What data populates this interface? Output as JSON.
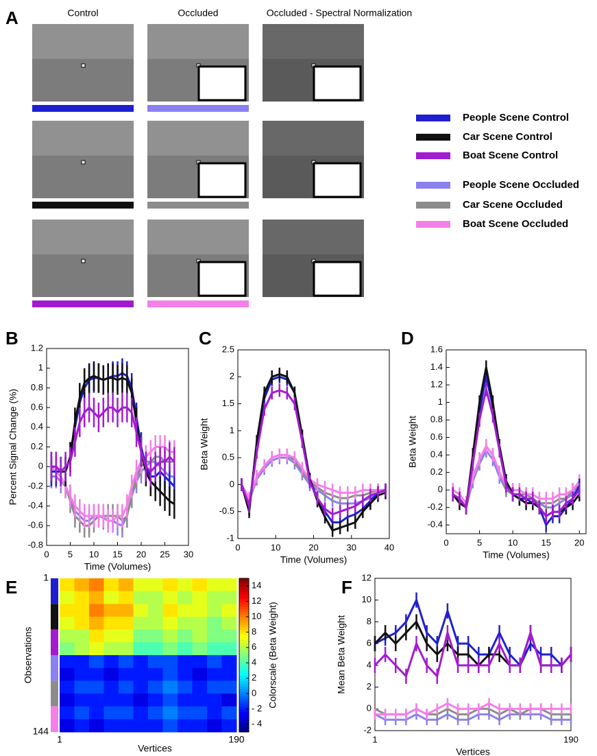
{
  "panel_a": {
    "panel": "A",
    "column_titles": [
      "Control",
      "Occluded",
      "Occluded - Spectral Normalization"
    ],
    "legend": [
      {
        "name": "People Scene Control",
        "color": "#1f1fd0"
      },
      {
        "name": "Car Scene Control",
        "color": "#111111"
      },
      {
        "name": "Boat Scene Control",
        "color": "#a21ccf"
      },
      {
        "name": "People Scene Occluded",
        "color": "#8a80f0"
      },
      {
        "name": "Car Scene Occluded",
        "color": "#8c8c8c"
      },
      {
        "name": "Boat Scene Occluded",
        "color": "#f47fe8"
      }
    ]
  },
  "chart_data": [
    {
      "type": "line",
      "panel": "B",
      "xlabel": "Time (Volumes)",
      "ylabel": "Percent Signal Change (%)",
      "x": [
        1,
        2,
        3,
        4,
        5,
        6,
        7,
        8,
        9,
        10,
        11,
        12,
        13,
        14,
        15,
        16,
        17,
        18,
        19,
        20,
        21,
        22,
        23,
        24,
        25,
        26,
        27
      ],
      "xlim": [
        0,
        30
      ],
      "xticks": [
        0,
        5,
        10,
        15,
        20,
        25,
        30
      ],
      "ylim": [
        -0.8,
        1.2
      ],
      "yticks": [
        -0.8,
        -0.6,
        -0.4,
        -0.2,
        0,
        0.2,
        0.4,
        0.6,
        0.8,
        1,
        1.2
      ],
      "series": [
        {
          "color": "#8a80f0",
          "error": 0.12,
          "values": [
            -0.1,
            -0.1,
            -0.15,
            -0.2,
            -0.3,
            -0.45,
            -0.5,
            -0.55,
            -0.55,
            -0.5,
            -0.5,
            -0.52,
            -0.55,
            -0.55,
            -0.58,
            -0.6,
            -0.5,
            -0.3,
            -0.15,
            -0.05,
            0,
            0.05,
            0.05,
            0,
            -0.05,
            -0.1,
            -0.1
          ]
        },
        {
          "color": "#8c8c8c",
          "error": 0.12,
          "values": [
            -0.05,
            -0.05,
            -0.1,
            -0.2,
            -0.35,
            -0.5,
            -0.55,
            -0.6,
            -0.6,
            -0.55,
            -0.5,
            -0.5,
            -0.5,
            -0.5,
            -0.5,
            -0.55,
            -0.5,
            -0.3,
            -0.1,
            0,
            0.05,
            0.05,
            0.1,
            0.1,
            0.05,
            0.05,
            0.05
          ]
        },
        {
          "color": "#f47fe8",
          "error": 0.12,
          "values": [
            0,
            -0.05,
            -0.1,
            -0.2,
            -0.3,
            -0.4,
            -0.45,
            -0.5,
            -0.5,
            -0.5,
            -0.5,
            -0.5,
            -0.55,
            -0.55,
            -0.5,
            -0.5,
            -0.4,
            -0.2,
            -0.05,
            0.05,
            0.1,
            0.15,
            0.2,
            0.2,
            0.2,
            0.15,
            0.15
          ]
        },
        {
          "color": "#1f1fd0",
          "error": 0.15,
          "values": [
            -0.05,
            -0.05,
            -0.05,
            -0.05,
            0.1,
            0.4,
            0.65,
            0.8,
            0.88,
            0.9,
            0.9,
            0.88,
            0.9,
            0.92,
            0.92,
            0.95,
            0.92,
            0.8,
            0.5,
            0.2,
            0,
            -0.1,
            -0.1,
            -0.05,
            -0.1,
            -0.15,
            -0.2
          ]
        },
        {
          "color": "#111111",
          "error": 0.15,
          "values": [
            0,
            0,
            -0.05,
            -0.05,
            0.1,
            0.45,
            0.7,
            0.85,
            0.9,
            0.92,
            0.9,
            0.88,
            0.9,
            0.9,
            0.88,
            0.9,
            0.88,
            0.75,
            0.45,
            0.15,
            -0.05,
            -0.15,
            -0.2,
            -0.25,
            -0.3,
            -0.35,
            -0.38
          ]
        },
        {
          "color": "#a21ccf",
          "error": 0.15,
          "values": [
            0,
            0,
            -0.05,
            0,
            0.05,
            0.25,
            0.45,
            0.55,
            0.6,
            0.55,
            0.5,
            0.55,
            0.6,
            0.6,
            0.55,
            0.6,
            0.6,
            0.55,
            0.35,
            0.15,
            0,
            -0.05,
            0,
            0.05,
            0.05,
            0.1,
            0.05
          ]
        }
      ]
    },
    {
      "type": "line",
      "panel": "C",
      "xlabel": "Time (Volumes)",
      "ylabel": "Beta Weight",
      "x": [
        1,
        3,
        5,
        7,
        9,
        11,
        13,
        15,
        17,
        19,
        21,
        23,
        25,
        27,
        29,
        31,
        33,
        35,
        37,
        39
      ],
      "xlim": [
        0,
        40
      ],
      "xticks": [
        0,
        10,
        20,
        30,
        40
      ],
      "ylim": [
        -1,
        2.5
      ],
      "yticks": [
        -1,
        -0.5,
        0,
        0.5,
        1,
        1.5,
        2,
        2.5
      ],
      "series": [
        {
          "color": "#8a80f0",
          "error": 0.12,
          "values": [
            0,
            -0.3,
            0.1,
            0.3,
            0.45,
            0.5,
            0.5,
            0.4,
            0.2,
            0,
            -0.1,
            -0.2,
            -0.3,
            -0.35,
            -0.35,
            -0.35,
            -0.3,
            -0.25,
            -0.15,
            -0.1
          ]
        },
        {
          "color": "#8c8c8c",
          "error": 0.12,
          "values": [
            0,
            -0.3,
            0.15,
            0.35,
            0.5,
            0.55,
            0.55,
            0.45,
            0.25,
            0.05,
            -0.05,
            -0.15,
            -0.2,
            -0.25,
            -0.25,
            -0.2,
            -0.2,
            -0.15,
            -0.1,
            -0.1
          ]
        },
        {
          "color": "#f47fe8",
          "error": 0.12,
          "values": [
            0,
            -0.25,
            0.15,
            0.35,
            0.5,
            0.55,
            0.55,
            0.5,
            0.3,
            0.1,
            0,
            -0.05,
            -0.1,
            -0.15,
            -0.15,
            -0.15,
            -0.1,
            -0.1,
            -0.1,
            -0.1
          ]
        },
        {
          "color": "#1f1fd0",
          "error": 0.12,
          "values": [
            0,
            -0.45,
            0.75,
            1.6,
            1.95,
            2,
            1.95,
            1.7,
            0.9,
            0.1,
            -0.25,
            -0.5,
            -0.7,
            -0.7,
            -0.6,
            -0.55,
            -0.45,
            -0.3,
            -0.15,
            -0.1
          ]
        },
        {
          "color": "#111111",
          "error": 0.12,
          "values": [
            0,
            -0.5,
            0.8,
            1.7,
            2,
            2.05,
            2,
            1.7,
            0.9,
            0.1,
            -0.3,
            -0.6,
            -0.85,
            -0.8,
            -0.75,
            -0.7,
            -0.5,
            -0.35,
            -0.2,
            -0.15
          ]
        },
        {
          "color": "#a21ccf",
          "error": 0.12,
          "values": [
            0,
            -0.4,
            0.6,
            1.4,
            1.7,
            1.75,
            1.7,
            1.5,
            0.8,
            0.05,
            -0.25,
            -0.45,
            -0.55,
            -0.5,
            -0.45,
            -0.4,
            -0.3,
            -0.2,
            -0.15,
            -0.1
          ]
        }
      ]
    },
    {
      "type": "line",
      "panel": "D",
      "xlabel": "Time (Volumes)",
      "ylabel": "Beta Weight",
      "x": [
        1,
        2,
        3,
        4,
        5,
        6,
        7,
        8,
        9,
        10,
        11,
        12,
        13,
        14,
        15,
        16,
        17,
        18,
        19,
        20
      ],
      "xlim": [
        0,
        21
      ],
      "xticks": [
        0,
        5,
        10,
        15,
        20
      ],
      "ylim": [
        -0.5,
        1.6
      ],
      "yticks": [
        -0.4,
        -0.2,
        0,
        0.2,
        0.4,
        0.6,
        0.8,
        1,
        1.2,
        1.4,
        1.6
      ],
      "series": [
        {
          "color": "#8a80f0",
          "error": 0.08,
          "values": [
            -0.05,
            -0.1,
            -0.2,
            0.1,
            0.3,
            0.45,
            0.35,
            0.15,
            0,
            -0.05,
            -0.05,
            -0.1,
            -0.1,
            -0.15,
            -0.2,
            -0.2,
            -0.15,
            -0.1,
            -0.05,
            0.05
          ]
        },
        {
          "color": "#8c8c8c",
          "error": 0.08,
          "values": [
            -0.05,
            -0.1,
            -0.2,
            0.15,
            0.35,
            0.5,
            0.4,
            0.2,
            0,
            -0.05,
            -0.05,
            -0.05,
            -0.1,
            -0.15,
            -0.15,
            -0.15,
            -0.1,
            -0.1,
            0,
            0.05
          ]
        },
        {
          "color": "#f47fe8",
          "error": 0.08,
          "values": [
            0,
            -0.05,
            -0.15,
            0.15,
            0.35,
            0.5,
            0.4,
            0.2,
            0.05,
            0,
            0,
            -0.05,
            -0.05,
            -0.1,
            -0.1,
            -0.1,
            -0.05,
            -0.05,
            0,
            0.1
          ]
        },
        {
          "color": "#1f1fd0",
          "error": 0.08,
          "values": [
            -0.05,
            -0.1,
            -0.2,
            0.35,
            0.9,
            1.3,
            0.95,
            0.5,
            0.1,
            -0.05,
            -0.1,
            -0.1,
            -0.15,
            -0.2,
            -0.4,
            -0.3,
            -0.3,
            -0.2,
            -0.1,
            0.05
          ]
        },
        {
          "color": "#111111",
          "error": 0.08,
          "values": [
            -0.05,
            -0.15,
            -0.2,
            0.4,
            1,
            1.4,
            1,
            0.5,
            0.1,
            -0.05,
            -0.1,
            -0.15,
            -0.15,
            -0.2,
            -0.3,
            -0.25,
            -0.25,
            -0.2,
            -0.15,
            -0.05
          ]
        },
        {
          "color": "#a21ccf",
          "error": 0.08,
          "values": [
            -0.05,
            -0.1,
            -0.2,
            0.3,
            0.8,
            1.15,
            0.85,
            0.45,
            0.05,
            -0.05,
            -0.05,
            -0.1,
            -0.1,
            -0.2,
            -0.3,
            -0.25,
            -0.25,
            -0.15,
            -0.1,
            0
          ]
        }
      ]
    },
    {
      "type": "heatmap",
      "panel": "E",
      "xlabel": "Vertices",
      "ylabel": "Observations",
      "colorbar_label": "Colorscale (Beta Weight)",
      "xlim": [
        1,
        190
      ],
      "xticks": [
        1,
        190
      ],
      "ylim": [
        1,
        144
      ],
      "yticks": [
        1,
        144
      ],
      "clim": [
        -5,
        15
      ],
      "cticks": [
        {
          "value": -4,
          "label": "- 4"
        },
        {
          "value": -2,
          "label": "- 2"
        },
        0,
        2,
        4,
        6,
        8,
        10,
        12,
        14
      ],
      "row_colors": [
        "#1f1fd0",
        "#111111",
        "#a21ccf",
        "#8a80f0",
        "#8c8c8c",
        "#f47fe8"
      ],
      "values": [
        [
          8,
          9,
          10,
          8,
          9,
          7,
          7,
          8,
          7,
          8,
          7,
          7
        ],
        [
          7,
          8,
          9,
          7,
          8,
          6,
          6,
          7,
          6,
          7,
          6,
          6
        ],
        [
          8,
          8,
          10,
          9,
          9,
          7,
          6,
          8,
          7,
          7,
          6,
          7
        ],
        [
          7,
          8,
          9,
          8,
          8,
          6,
          6,
          7,
          6,
          6,
          5,
          6
        ],
        [
          6,
          6,
          8,
          7,
          7,
          5,
          5,
          6,
          5,
          6,
          5,
          5
        ],
        [
          5,
          6,
          7,
          6,
          6,
          4,
          4,
          5,
          4,
          5,
          4,
          4
        ],
        [
          -2,
          -2,
          -1,
          -2,
          -1,
          -2,
          -1,
          -1,
          -2,
          -2,
          -1,
          -2
        ],
        [
          -3,
          -2,
          -2,
          -3,
          -2,
          -2,
          -2,
          -1,
          -2,
          -3,
          -2,
          -2
        ],
        [
          -2,
          -1,
          -1,
          -2,
          -1,
          -2,
          -1,
          0,
          -1,
          -2,
          -1,
          -1
        ],
        [
          -3,
          -2,
          -2,
          -2,
          -2,
          -3,
          -2,
          -1,
          -2,
          -2,
          -2,
          -3
        ],
        [
          -2,
          -1,
          -2,
          -1,
          -1,
          -2,
          -1,
          0,
          -1,
          -1,
          -2,
          -1
        ],
        [
          -3,
          -2,
          -3,
          -2,
          -2,
          -2,
          -2,
          -1,
          -2,
          -2,
          -3,
          -2
        ]
      ]
    },
    {
      "type": "line",
      "panel": "F",
      "xlabel": "Vertices",
      "ylabel": "Mean Beta Weight",
      "x": [
        1,
        11,
        21,
        31,
        41,
        51,
        61,
        71,
        81,
        91,
        101,
        111,
        121,
        131,
        141,
        151,
        161,
        171,
        181,
        190
      ],
      "xlim": [
        1,
        190
      ],
      "xticks": [
        1,
        190
      ],
      "ylim": [
        -2,
        12
      ],
      "yticks": [
        -2,
        0,
        2,
        4,
        6,
        8,
        10,
        12
      ],
      "series": [
        {
          "color": "#8a80f0",
          "error": 0.5,
          "values": [
            -0.5,
            -1,
            -1,
            -1,
            -0.5,
            -1,
            -1,
            -0.5,
            -1,
            -1,
            -0.5,
            -0.5,
            -1,
            -0.5,
            -0.5,
            -0.5,
            -0.5,
            -1,
            -1,
            -1
          ]
        },
        {
          "color": "#8c8c8c",
          "error": 0.5,
          "values": [
            0,
            -0.5,
            -0.5,
            -0.5,
            0,
            -0.5,
            -0.5,
            0,
            -0.5,
            -0.5,
            0,
            0,
            -0.5,
            0,
            -0.5,
            0,
            0,
            -0.5,
            -0.5,
            -0.5
          ]
        },
        {
          "color": "#f47fe8",
          "error": 0.5,
          "values": [
            -0.5,
            -0.5,
            -0.5,
            -0.5,
            0,
            -0.5,
            0,
            0.5,
            0,
            0,
            0,
            0.5,
            0,
            0,
            0,
            0,
            0,
            0,
            0,
            0
          ]
        },
        {
          "color": "#1f1fd0",
          "error": 0.7,
          "values": [
            6,
            6.5,
            7,
            8,
            10,
            7,
            6,
            9,
            6,
            6,
            5,
            5,
            7,
            5,
            4,
            6,
            5,
            5,
            4,
            5
          ]
        },
        {
          "color": "#111111",
          "error": 0.7,
          "values": [
            6,
            7,
            6,
            7,
            8,
            6,
            5,
            6,
            5,
            5,
            4,
            5,
            5,
            4,
            4,
            7,
            4,
            4,
            4,
            5
          ]
        },
        {
          "color": "#a21ccf",
          "error": 0.7,
          "values": [
            4,
            5,
            4,
            3,
            6,
            4,
            3,
            7,
            4,
            4,
            4,
            4,
            6,
            4,
            4,
            7,
            4,
            4,
            4,
            5
          ]
        }
      ]
    }
  ]
}
